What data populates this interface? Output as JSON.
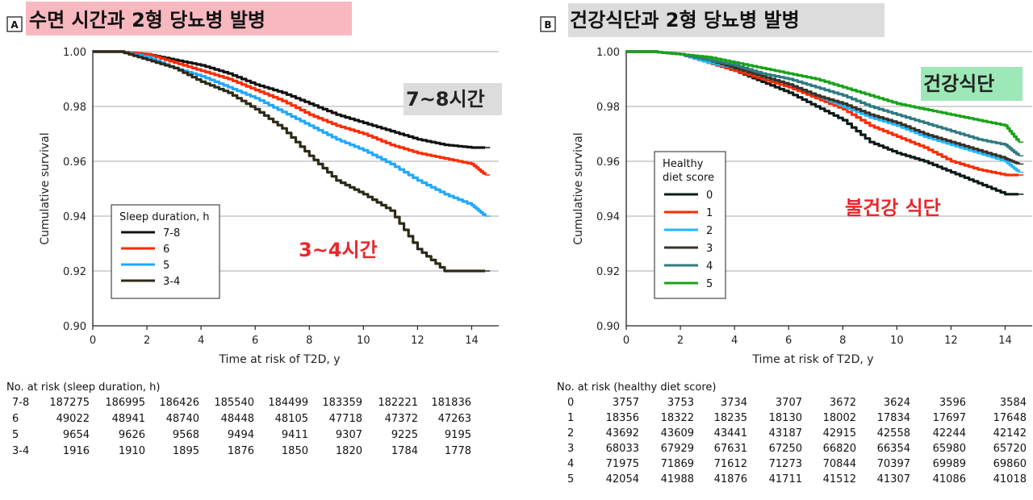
{
  "colors": {
    "c78": "#111111",
    "c6": "#ff2a00",
    "c5": "#1fa8ff",
    "c34": "#2e2a18",
    "d0": "#0d1a1a",
    "d1": "#ff2a00",
    "d2": "#1fb8ff",
    "d3": "#3a3228",
    "d4": "#2f7a80",
    "d5": "#19a319",
    "pinkBg": "#f7b8c0",
    "greyBg": "#dcdcdc",
    "greenBg": "#9ee8b8",
    "red": "#e8282a"
  },
  "chart_data": [
    {
      "type": "line",
      "panel_label": "A",
      "title": "수면 시간과 2형 당뇨병 발병",
      "xlabel": "Time at risk of T2D, y",
      "ylabel": "Cumulative survival",
      "xlim": [
        0,
        15
      ],
      "ylim": [
        0.9,
        1.0
      ],
      "xticks": [
        "0",
        "2",
        "4",
        "6",
        "8",
        "10",
        "12",
        "14"
      ],
      "yticks": [
        "0.90",
        "0.92",
        "0.94",
        "0.96",
        "0.98",
        "1.00"
      ],
      "legend_title": "Sleep duration, h",
      "annotations": {
        "upper": "7~8시간",
        "lower": "3~4시간"
      },
      "series": [
        {
          "name": "7-8",
          "x": [
            0,
            1,
            2,
            3,
            4,
            5,
            6,
            7,
            8,
            9,
            10,
            11,
            12,
            13,
            14,
            14.5
          ],
          "values": [
            1.0,
            1.0,
            0.999,
            0.997,
            0.995,
            0.992,
            0.988,
            0.985,
            0.981,
            0.977,
            0.974,
            0.971,
            0.968,
            0.966,
            0.965,
            0.965
          ]
        },
        {
          "name": "6",
          "x": [
            0,
            1,
            2,
            3,
            4,
            5,
            6,
            7,
            8,
            9,
            10,
            11,
            12,
            13,
            14,
            14.5
          ],
          "values": [
            1.0,
            1.0,
            0.999,
            0.996,
            0.993,
            0.99,
            0.986,
            0.982,
            0.977,
            0.973,
            0.97,
            0.966,
            0.963,
            0.961,
            0.959,
            0.955
          ]
        },
        {
          "name": "5",
          "x": [
            0,
            1,
            2,
            3,
            4,
            5,
            6,
            7,
            8,
            9,
            10,
            11,
            12,
            13,
            14,
            14.5
          ],
          "values": [
            1.0,
            1.0,
            0.998,
            0.994,
            0.991,
            0.987,
            0.983,
            0.978,
            0.973,
            0.968,
            0.964,
            0.959,
            0.953,
            0.948,
            0.944,
            0.94
          ]
        },
        {
          "name": "3-4",
          "x": [
            0,
            1,
            2,
            3,
            4,
            5,
            6,
            7,
            8,
            9,
            10,
            11,
            12,
            13,
            14,
            14.5
          ],
          "values": [
            1.0,
            1.0,
            0.997,
            0.994,
            0.989,
            0.985,
            0.979,
            0.972,
            0.962,
            0.953,
            0.948,
            0.942,
            0.928,
            0.92,
            0.92,
            0.92
          ]
        }
      ],
      "risk_table": {
        "title": "No. at risk (sleep duration, h)",
        "rows": [
          {
            "label": "7-8",
            "values": [
              "187275",
              "186995",
              "186426",
              "185540",
              "184499",
              "183359",
              "182221",
              "181836"
            ]
          },
          {
            "label": "6",
            "values": [
              "49022",
              "48941",
              "48740",
              "48448",
              "48105",
              "47718",
              "47372",
              "47263"
            ]
          },
          {
            "label": "5",
            "values": [
              "9654",
              "9626",
              "9568",
              "9494",
              "9411",
              "9307",
              "9225",
              "9195"
            ]
          },
          {
            "label": "3-4",
            "values": [
              "1916",
              "1910",
              "1895",
              "1876",
              "1850",
              "1820",
              "1784",
              "1778"
            ]
          }
        ]
      }
    },
    {
      "type": "line",
      "panel_label": "B",
      "title": "건강식단과 2형 당뇨병 발병",
      "xlabel": "Time at risk of T2D, y",
      "ylabel": "Cumulative survival",
      "xlim": [
        0,
        15
      ],
      "ylim": [
        0.9,
        1.0
      ],
      "xticks": [
        "0",
        "2",
        "4",
        "6",
        "8",
        "10",
        "12",
        "14"
      ],
      "yticks": [
        "0.90",
        "0.92",
        "0.94",
        "0.96",
        "0.98",
        "1.00"
      ],
      "legend_title": [
        "Healthy",
        "diet score"
      ],
      "annotations": {
        "upper": "건강식단",
        "lower": "불건강 식단"
      },
      "series": [
        {
          "name": "0",
          "x": [
            0,
            1,
            2,
            3,
            4,
            5,
            6,
            7,
            8,
            9,
            10,
            11,
            12,
            13,
            14,
            14.5
          ],
          "values": [
            1.0,
            1.0,
            0.999,
            0.996,
            0.993,
            0.989,
            0.985,
            0.98,
            0.975,
            0.967,
            0.963,
            0.96,
            0.956,
            0.952,
            0.948,
            0.948
          ]
        },
        {
          "name": "1",
          "x": [
            0,
            1,
            2,
            3,
            4,
            5,
            6,
            7,
            8,
            9,
            10,
            11,
            12,
            13,
            14,
            14.5
          ],
          "values": [
            1.0,
            1.0,
            0.999,
            0.996,
            0.993,
            0.99,
            0.987,
            0.983,
            0.979,
            0.973,
            0.969,
            0.965,
            0.96,
            0.957,
            0.955,
            0.955
          ]
        },
        {
          "name": "2",
          "x": [
            0,
            1,
            2,
            3,
            4,
            5,
            6,
            7,
            8,
            9,
            10,
            11,
            12,
            13,
            14,
            14.5
          ],
          "values": [
            1.0,
            1.0,
            0.999,
            0.996,
            0.994,
            0.991,
            0.988,
            0.984,
            0.98,
            0.976,
            0.973,
            0.969,
            0.966,
            0.963,
            0.96,
            0.956
          ]
        },
        {
          "name": "3",
          "x": [
            0,
            1,
            2,
            3,
            4,
            5,
            6,
            7,
            8,
            9,
            10,
            11,
            12,
            13,
            14,
            14.5
          ],
          "values": [
            1.0,
            1.0,
            0.999,
            0.997,
            0.994,
            0.991,
            0.988,
            0.984,
            0.981,
            0.977,
            0.974,
            0.97,
            0.967,
            0.964,
            0.961,
            0.959
          ]
        },
        {
          "name": "4",
          "x": [
            0,
            1,
            2,
            3,
            4,
            5,
            6,
            7,
            8,
            9,
            10,
            11,
            12,
            13,
            14,
            14.5
          ],
          "values": [
            1.0,
            1.0,
            0.999,
            0.997,
            0.995,
            0.992,
            0.99,
            0.987,
            0.984,
            0.98,
            0.977,
            0.974,
            0.971,
            0.968,
            0.966,
            0.962
          ]
        },
        {
          "name": "5",
          "x": [
            0,
            1,
            2,
            3,
            4,
            5,
            6,
            7,
            8,
            9,
            10,
            11,
            12,
            13,
            14,
            14.5
          ],
          "values": [
            1.0,
            1.0,
            0.999,
            0.998,
            0.996,
            0.994,
            0.992,
            0.99,
            0.987,
            0.984,
            0.981,
            0.979,
            0.977,
            0.975,
            0.973,
            0.967
          ]
        }
      ],
      "risk_table": {
        "title": "No. at risk (healthy diet score)",
        "rows": [
          {
            "label": "0",
            "values": [
              "3757",
              "3753",
              "3734",
              "3707",
              "3672",
              "3624",
              "3596",
              "3584"
            ]
          },
          {
            "label": "1",
            "values": [
              "18356",
              "18322",
              "18235",
              "18130",
              "18002",
              "17834",
              "17697",
              "17648"
            ]
          },
          {
            "label": "2",
            "values": [
              "43692",
              "43609",
              "43441",
              "43187",
              "42915",
              "42558",
              "42244",
              "42142"
            ]
          },
          {
            "label": "3",
            "values": [
              "68033",
              "67929",
              "67631",
              "67250",
              "66820",
              "66354",
              "65980",
              "65720"
            ]
          },
          {
            "label": "4",
            "values": [
              "71975",
              "71869",
              "71612",
              "71273",
              "70844",
              "70397",
              "69989",
              "69860"
            ]
          },
          {
            "label": "5",
            "values": [
              "42054",
              "41988",
              "41876",
              "41711",
              "41512",
              "41307",
              "41086",
              "41018"
            ]
          }
        ]
      }
    }
  ]
}
